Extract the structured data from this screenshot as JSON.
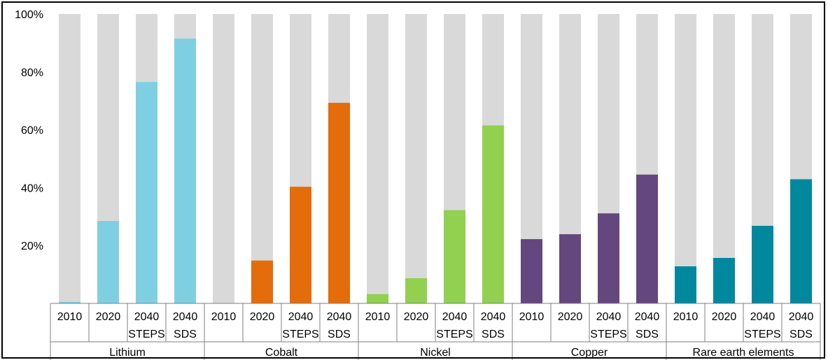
{
  "chart_data": {
    "type": "bar",
    "stacked_to_full": true,
    "ylim": [
      0,
      100
    ],
    "y_ticks": [
      "20%",
      "40%",
      "60%",
      "80%",
      "100%"
    ],
    "y_tick_values": [
      20,
      40,
      60,
      80,
      100
    ],
    "background_bar_color": "#d9d9d9",
    "groups": [
      {
        "name": "Lithium",
        "color": "#7fcfe3",
        "bars": [
          {
            "line1": "2010",
            "line2": "",
            "value": 0.5
          },
          {
            "line1": "2020",
            "line2": "",
            "value": 28.5
          },
          {
            "line1": "2040",
            "line2": "STEPS",
            "value": 76.5
          },
          {
            "line1": "2040",
            "line2": "SDS",
            "value": 91.5
          }
        ]
      },
      {
        "name": "Cobalt",
        "color": "#e46c0a",
        "bars": [
          {
            "line1": "2010",
            "line2": "",
            "value": 0
          },
          {
            "line1": "2020",
            "line2": "",
            "value": 14.8
          },
          {
            "line1": "2040",
            "line2": "STEPS",
            "value": 40.3
          },
          {
            "line1": "2040",
            "line2": "SDS",
            "value": 69.3
          }
        ]
      },
      {
        "name": "Nickel",
        "color": "#92d050",
        "bars": [
          {
            "line1": "2010",
            "line2": "",
            "value": 3.2
          },
          {
            "line1": "2020",
            "line2": "",
            "value": 8.7
          },
          {
            "line1": "2040",
            "line2": "STEPS",
            "value": 32.2
          },
          {
            "line1": "2040",
            "line2": "SDS",
            "value": 61.5
          }
        ]
      },
      {
        "name": "Copper",
        "color": "#65477f",
        "bars": [
          {
            "line1": "2010",
            "line2": "",
            "value": 22.2
          },
          {
            "line1": "2020",
            "line2": "",
            "value": 23.9
          },
          {
            "line1": "2040",
            "line2": "STEPS",
            "value": 31.1
          },
          {
            "line1": "2040",
            "line2": "SDS",
            "value": 44.5
          }
        ]
      },
      {
        "name": "Rare earth elements",
        "color": "#00889e",
        "bars": [
          {
            "line1": "2010",
            "line2": "",
            "value": 12.8
          },
          {
            "line1": "2020",
            "line2": "",
            "value": 15.7
          },
          {
            "line1": "2040",
            "line2": "STEPS",
            "value": 26.8
          },
          {
            "line1": "2040",
            "line2": "SDS",
            "value": 42.9
          }
        ]
      }
    ]
  }
}
